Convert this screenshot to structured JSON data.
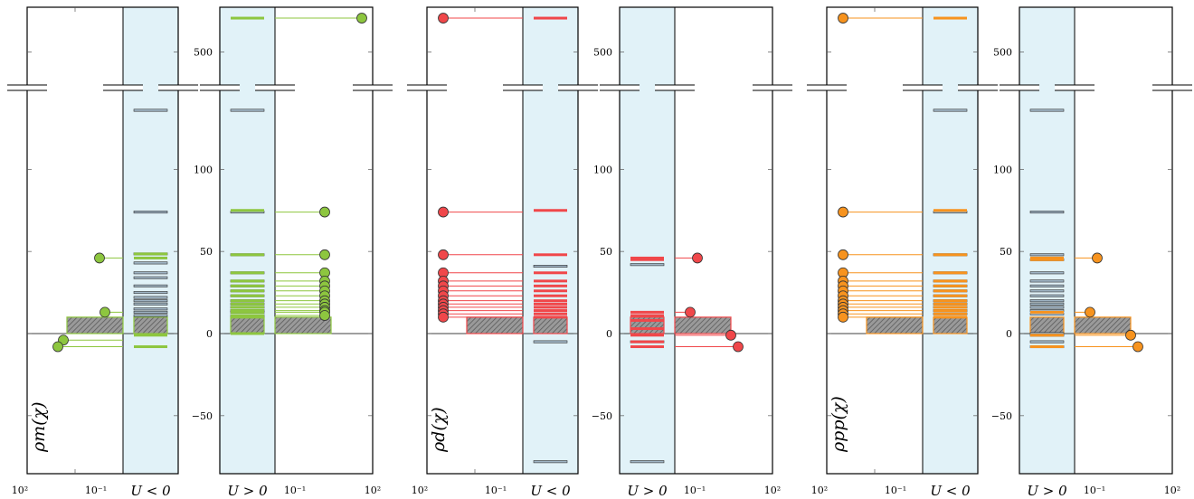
{
  "chart_data": {
    "type": "spectral-density-plot",
    "ytick_labels": [
      "−50",
      "0",
      "50",
      "100",
      "500"
    ],
    "xtick_labels": {
      "outer": "10²",
      "inner": "10⁻¹"
    },
    "colors": {
      "m": "#8dc63f",
      "d": "#f0474a",
      "pp": "#f7931e",
      "band": "#e1f2f8",
      "hatch": "#8a8a8a"
    },
    "groups": [
      {
        "ylabel": "ρm(χ)",
        "color_key": "m",
        "u_negative_label": "U < 0",
        "u_positive_label": "U > 0",
        "neg_left_peaks": [
          46,
          13,
          -4,
          -8
        ],
        "neg_bars_colored": [
          46,
          48.5,
          -1,
          -8
        ],
        "neg_bars_gray": [
          134,
          74,
          48.5,
          43,
          37,
          34,
          29,
          25,
          22,
          20,
          18,
          15,
          13,
          11
        ],
        "pos_right_peaks": [
          727,
          74,
          48,
          37,
          32,
          29,
          26,
          23,
          20,
          18,
          16,
          14,
          13,
          11
        ],
        "pos_bars_colored": [
          727,
          75,
          48,
          37,
          32,
          29,
          26,
          23,
          20,
          18,
          16,
          14,
          13,
          11,
          10,
          0
        ],
        "pos_bars_gray": [
          134,
          74,
          48,
          37,
          32,
          29,
          26,
          23,
          20,
          18,
          16,
          14,
          13,
          11
        ]
      },
      {
        "ylabel": "ρd(χ)",
        "color_key": "d",
        "u_negative_label": "U < 0",
        "u_positive_label": "U > 0",
        "neg_left_peaks": [
          727,
          74,
          48,
          37,
          32,
          29,
          26,
          23,
          20,
          18,
          16,
          14,
          12,
          10
        ],
        "neg_bars_colored": [
          727,
          75,
          48,
          37,
          32,
          29,
          26,
          23,
          20,
          18,
          16,
          14,
          12,
          10
        ],
        "neg_bars_gray": [
          41,
          -5,
          -78
        ],
        "pos_right_peaks": [
          46,
          13,
          -1,
          -8
        ],
        "pos_bars_colored": [
          46,
          45,
          13,
          11,
          8,
          3,
          -1,
          -5,
          -8
        ],
        "pos_bars_gray": [
          42,
          -5,
          -78
        ]
      },
      {
        "ylabel": "ρpp(χ)",
        "color_key": "pp",
        "u_negative_label": "U < 0",
        "u_positive_label": "U > 0",
        "neg_left_peaks": [
          727,
          74,
          48,
          37,
          32,
          29,
          26,
          23,
          20,
          18,
          16,
          14,
          12,
          10
        ],
        "neg_bars_colored": [
          727,
          75,
          48,
          37,
          32,
          29,
          26,
          23,
          20,
          18,
          16,
          14,
          12,
          10
        ],
        "neg_bars_gray": [
          134,
          74,
          48,
          37,
          32,
          29,
          26,
          23,
          20,
          18,
          16,
          14,
          12
        ],
        "pos_right_peaks": [
          46,
          13,
          -1,
          -8
        ],
        "pos_bars_colored": [
          46,
          45,
          13,
          -1,
          -8
        ],
        "pos_bars_gray": [
          134,
          74,
          48,
          45,
          37,
          32,
          29,
          26,
          23,
          20,
          18,
          16,
          14,
          12,
          0,
          -1,
          -5,
          -8
        ]
      }
    ]
  }
}
